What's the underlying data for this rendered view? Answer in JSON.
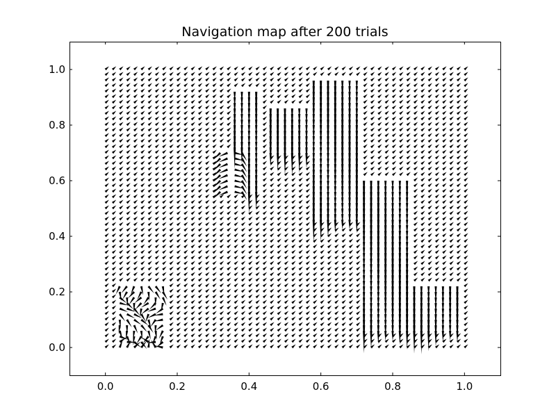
{
  "chart_data": {
    "type": "quiver",
    "title": "Navigation map after 200 trials",
    "xlabel": "",
    "ylabel": "",
    "xlim": [
      -0.1,
      1.1
    ],
    "ylim": [
      -0.1,
      1.1
    ],
    "x_ticks": [
      0.0,
      0.2,
      0.4,
      0.6,
      0.8,
      1.0
    ],
    "y_ticks": [
      0.0,
      0.2,
      0.4,
      0.6,
      0.8,
      1.0
    ],
    "x_tick_labels": [
      "0.0",
      "0.2",
      "0.4",
      "0.6",
      "0.8",
      "1.0"
    ],
    "y_tick_labels": [
      "0.0",
      "0.2",
      "0.4",
      "0.6",
      "0.8",
      "1.0"
    ],
    "grid": false,
    "field": {
      "x_range": [
        0.0,
        1.0
      ],
      "y_range": [
        0.0,
        1.0
      ],
      "points_per_axis": 51,
      "default_direction": "up-right (pointing toward the top-right)",
      "regions": [
        {
          "description": "long downward arrows, upper-center column",
          "x": [
            0.36,
            0.42
          ],
          "y": [
            0.55,
            0.92
          ],
          "direction": "down"
        },
        {
          "description": "long downward arrows, center-right column",
          "x": [
            0.46,
            0.56
          ],
          "y": [
            0.7,
            0.86
          ],
          "direction": "down"
        },
        {
          "description": "long downward arrows, center-right column",
          "x": [
            0.58,
            0.7
          ],
          "y": [
            0.45,
            0.97
          ],
          "direction": "down"
        },
        {
          "description": "long downward arrows, right columns",
          "x": [
            0.72,
            0.84
          ],
          "y": [
            0.05,
            0.6
          ],
          "direction": "down"
        },
        {
          "description": "long downward arrows, bottom-right",
          "x": [
            0.84,
            0.98
          ],
          "y": [
            0.05,
            0.22
          ],
          "direction": "down"
        },
        {
          "description": "mixed arrows near left cluster",
          "x": [
            0.32,
            0.38
          ],
          "y": [
            0.55,
            0.7
          ],
          "direction": "mixed"
        },
        {
          "description": "swirl toward bottom-left corner",
          "x": [
            0.04,
            0.16
          ],
          "y": [
            0.0,
            0.22
          ],
          "direction": "left/down swirl"
        }
      ]
    }
  },
  "colors": {
    "arrow": "#000000",
    "background": "#ffffff",
    "frame": "#000000"
  }
}
